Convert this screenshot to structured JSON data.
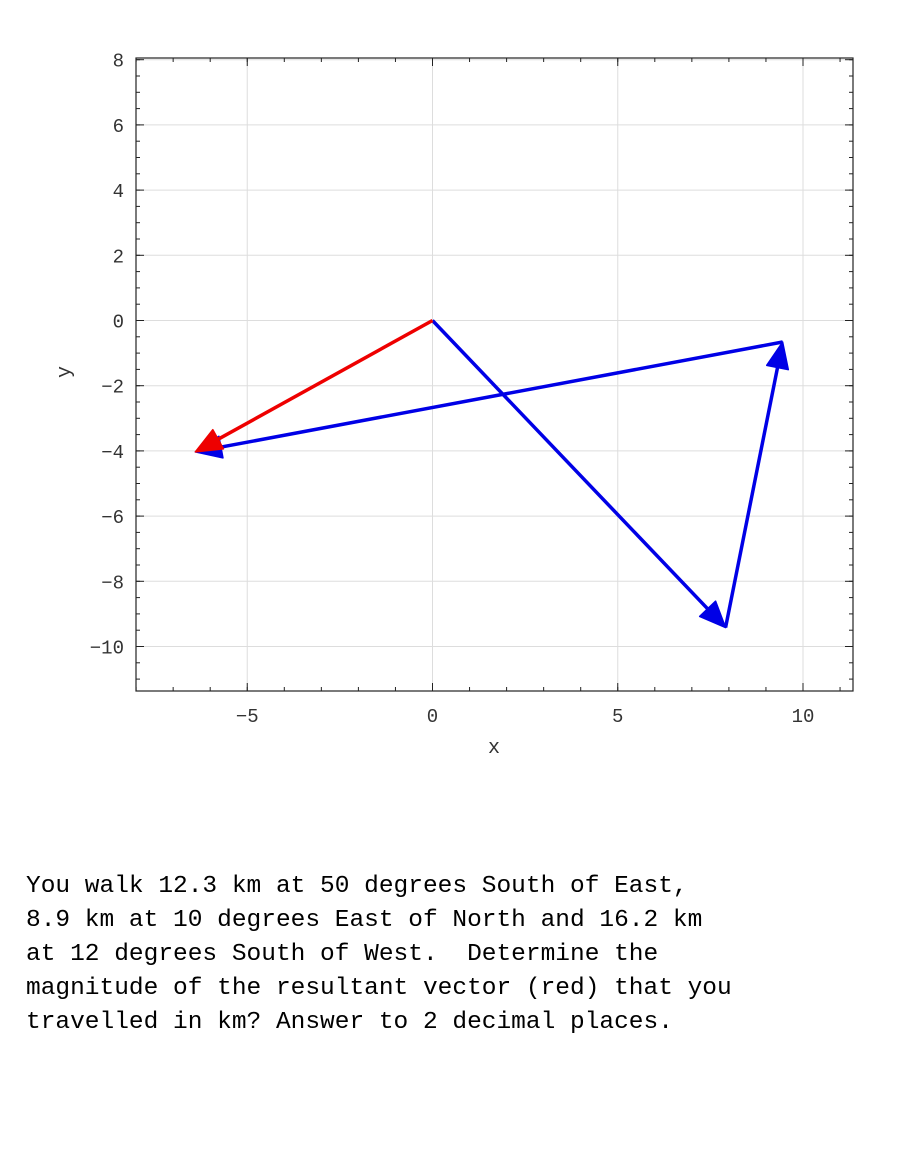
{
  "chart_data": {
    "type": "vector",
    "xlabel": "x",
    "ylabel": "y",
    "xlim": [
      -8.2,
      11.2
    ],
    "ylim": [
      -11.3,
      8.1
    ],
    "xticks": [
      -5,
      0,
      5,
      10
    ],
    "yticks": [
      8,
      6,
      4,
      2,
      0,
      -2,
      -4,
      -6,
      -8,
      -10
    ],
    "xtick_labels": [
      "−5",
      "0",
      "5",
      "10"
    ],
    "ytick_labels": [
      "8",
      "6",
      "4",
      "2",
      "0",
      "−2",
      "−4",
      "−6",
      "−8",
      "−10"
    ],
    "grid": true,
    "vectors": [
      {
        "color": "#0000e6",
        "from": [
          0,
          0
        ],
        "to": [
          7.91,
          -9.42
        ]
      },
      {
        "color": "#0000e6",
        "from": [
          7.91,
          -9.42
        ],
        "to": [
          9.45,
          -0.66
        ]
      },
      {
        "color": "#0000e6",
        "from": [
          9.45,
          -0.66
        ],
        "to": [
          -6.4,
          -4.03
        ]
      },
      {
        "color": "#ee0000",
        "from": [
          0,
          0
        ],
        "to": [
          -6.4,
          -4.03
        ]
      }
    ]
  },
  "question": {
    "lines": [
      "You walk 12.3 km at 50 degrees South of East,",
      "8.9 km at 10 degrees East of North and 16.2 km",
      "at 12 degrees South of West.  Determine the",
      "magnitude of the resultant vector (red) that you",
      "travelled in km? Answer to 2 decimal places."
    ]
  }
}
